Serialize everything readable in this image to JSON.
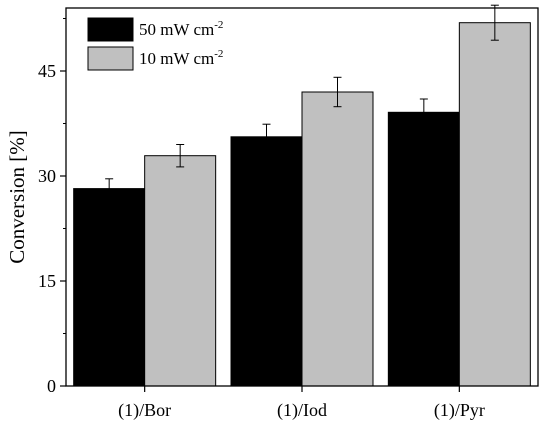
{
  "chart_data": {
    "type": "bar",
    "categories": [
      "(1)/Bor",
      "(1)/Iod",
      "(1)/Pyr"
    ],
    "series": [
      {
        "name": "50 mW cm",
        "name_superscript": "-2",
        "color": "#000000",
        "values": [
          28.2,
          35.6,
          39.1
        ],
        "errors": [
          1.4,
          1.8,
          1.9
        ]
      },
      {
        "name": "10 mW cm",
        "name_superscript": "-2",
        "color": "#c0c0c0",
        "values": [
          32.9,
          42.0,
          51.9
        ],
        "errors": [
          1.6,
          2.1,
          2.5
        ]
      }
    ],
    "ylabel": "Conversion [%]",
    "xlabel": "",
    "ylim": [
      0,
      54
    ],
    "yticks": [
      0,
      15,
      30,
      45
    ],
    "grid": false,
    "legend": "top-left"
  }
}
